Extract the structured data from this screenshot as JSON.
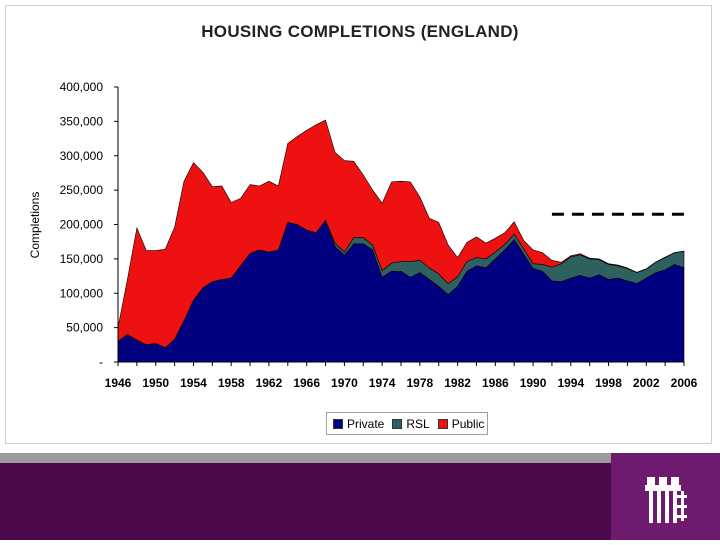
{
  "chart_data": {
    "type": "area",
    "title": "HOUSING COMPLETIONS (ENGLAND)",
    "ylabel": "Completions",
    "xlabel": "",
    "stacked": true,
    "ylim": [
      0,
      400000
    ],
    "xlim": [
      1946,
      2006
    ],
    "y_ticks": [
      "-",
      "50,000",
      "100,000",
      "150,000",
      "200,000",
      "250,000",
      "300,000",
      "350,000",
      "400,000"
    ],
    "x_ticks": [
      "1946",
      "1950",
      "1954",
      "1958",
      "1962",
      "1966",
      "1970",
      "1974",
      "1978",
      "1982",
      "1986",
      "1990",
      "1994",
      "1998",
      "2002",
      "2006"
    ],
    "x": [
      1946,
      1947,
      1948,
      1949,
      1950,
      1951,
      1952,
      1953,
      1954,
      1955,
      1956,
      1957,
      1958,
      1959,
      1960,
      1961,
      1962,
      1963,
      1964,
      1965,
      1966,
      1967,
      1968,
      1969,
      1970,
      1971,
      1972,
      1973,
      1974,
      1975,
      1976,
      1977,
      1978,
      1979,
      1980,
      1981,
      1982,
      1983,
      1984,
      1985,
      1986,
      1987,
      1988,
      1989,
      1990,
      1991,
      1992,
      1993,
      1994,
      1995,
      1996,
      1997,
      1998,
      1999,
      2000,
      2001,
      2002,
      2003,
      2004,
      2005,
      2006
    ],
    "series": [
      {
        "name": "Private",
        "color": "#000080",
        "values": [
          30000,
          40000,
          32000,
          25000,
          27000,
          21000,
          33000,
          60000,
          90000,
          108000,
          117000,
          120000,
          122000,
          140000,
          158000,
          163000,
          160000,
          163000,
          203000,
          200000,
          192000,
          188000,
          206000,
          168000,
          155000,
          172000,
          172000,
          163000,
          123000,
          132000,
          132000,
          123000,
          130000,
          120000,
          110000,
          98000,
          110000,
          132000,
          140000,
          137000,
          150000,
          163000,
          178000,
          157000,
          136000,
          132000,
          118000,
          117000,
          122000,
          126000,
          122000,
          127000,
          120000,
          122000,
          118000,
          114000,
          122000,
          130000,
          134000,
          142000,
          137000
        ]
      },
      {
        "name": "RSL",
        "color": "#2f6060",
        "values": [
          0,
          0,
          0,
          0,
          0,
          0,
          0,
          0,
          0,
          0,
          0,
          0,
          0,
          0,
          0,
          0,
          0,
          0,
          0,
          0,
          0,
          0,
          0,
          5000,
          5000,
          9000,
          9000,
          7000,
          10000,
          12000,
          14000,
          23000,
          18000,
          17000,
          18000,
          16000,
          14000,
          14000,
          12000,
          13000,
          10000,
          8000,
          8000,
          8000,
          7000,
          10000,
          20000,
          26000,
          31000,
          30000,
          28000,
          22000,
          22000,
          18000,
          18000,
          16000,
          13000,
          15000,
          18000,
          17000,
          24000
        ]
      },
      {
        "name": "Public",
        "color": "#ee1111",
        "values": [
          20000,
          80000,
          163000,
          137000,
          135000,
          143000,
          163000,
          203000,
          200000,
          168000,
          138000,
          136000,
          110000,
          98000,
          100000,
          93000,
          103000,
          93000,
          115000,
          128000,
          145000,
          157000,
          146000,
          132000,
          133000,
          111000,
          91000,
          80000,
          98000,
          118000,
          117000,
          116000,
          92000,
          72000,
          75000,
          56000,
          28000,
          28000,
          30000,
          23000,
          20000,
          17000,
          18000,
          12000,
          20000,
          17000,
          10000,
          2000,
          1500,
          1500,
          1000,
          1000,
          1000,
          1000,
          800,
          500,
          500,
          500,
          400,
          300,
          300
        ]
      }
    ],
    "annotations": [
      {
        "type": "dashed-line",
        "y": 215000,
        "x_range": [
          1992,
          2006
        ],
        "color": "#000000"
      }
    ],
    "legend_placement": "bottom-center",
    "grid": false
  }
}
